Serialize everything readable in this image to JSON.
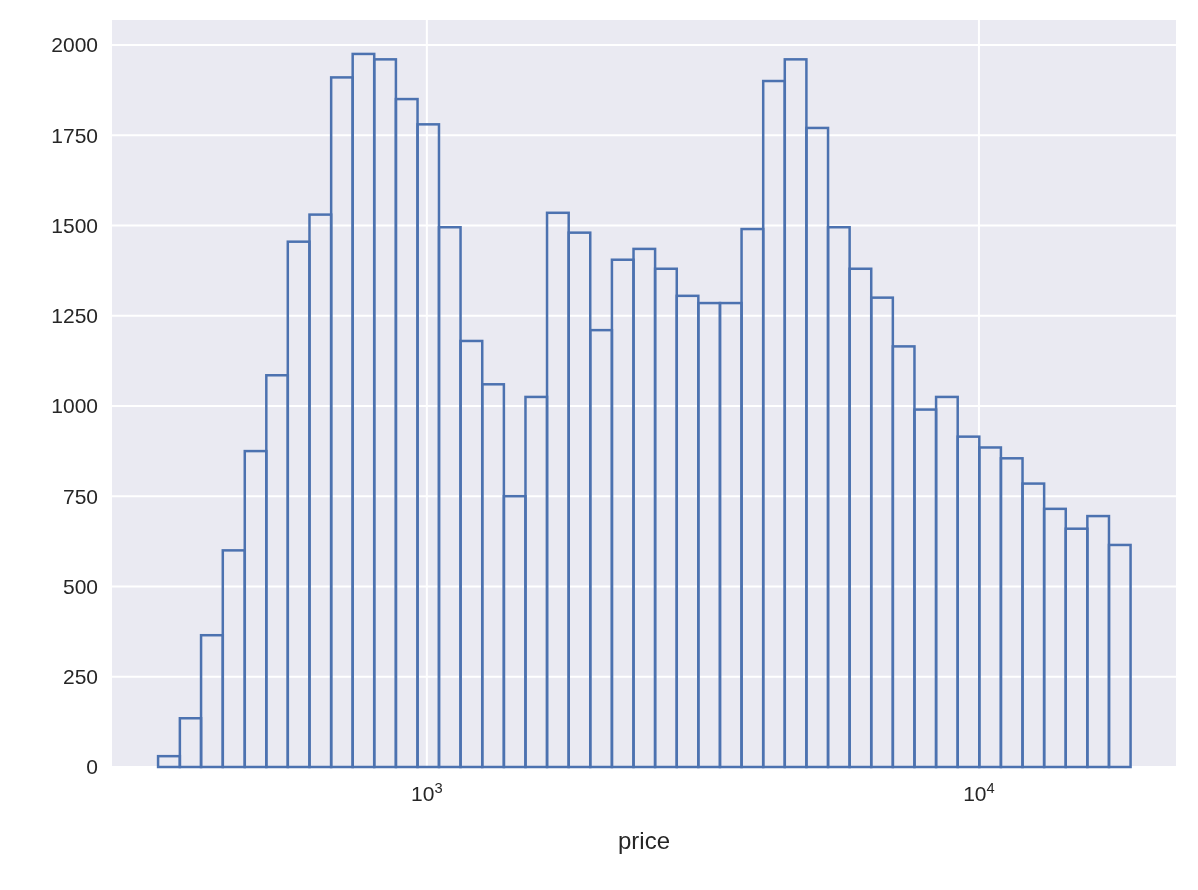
{
  "chart_data": {
    "type": "histogram",
    "xlabel": "price",
    "color": "#4c72b0",
    "bins": [
      326,
      357,
      390,
      427,
      468,
      512,
      560,
      613,
      671,
      734,
      803,
      879,
      962,
      1052,
      1151,
      1260,
      1379,
      1509,
      1651,
      1807,
      1977,
      2164,
      2368,
      2591,
      2836,
      3103,
      3396,
      3716,
      4067,
      4450,
      4870,
      5330,
      5832,
      6382,
      6984,
      7643,
      8364,
      9153,
      10016,
      10961,
      11995,
      13126,
      14364,
      15719,
      17202,
      18823
    ],
    "values": [
      30,
      135,
      365,
      600,
      875,
      1085,
      1455,
      1530,
      1910,
      1975,
      1960,
      1850,
      1780,
      1495,
      1180,
      1060,
      750,
      1025,
      1535,
      1480,
      1210,
      1405,
      1435,
      1380,
      1305,
      1285,
      1285,
      1490,
      1900,
      1960,
      1770,
      1495,
      1380,
      1300,
      1165,
      990,
      1025,
      915,
      885,
      855,
      785,
      715,
      660,
      695,
      615
    ],
    "log": "x",
    "xlim": [
      269,
      22750
    ],
    "xticks": [
      {
        "value": 1000,
        "label": "10$^{3}$"
      },
      {
        "value": 10000,
        "label": "10$^{4}$"
      }
    ],
    "ylim": [
      0,
      2069
    ],
    "yticks": [
      0,
      250,
      500,
      750,
      1000,
      1250,
      1500,
      1750,
      2000
    ],
    "grid": true
  }
}
